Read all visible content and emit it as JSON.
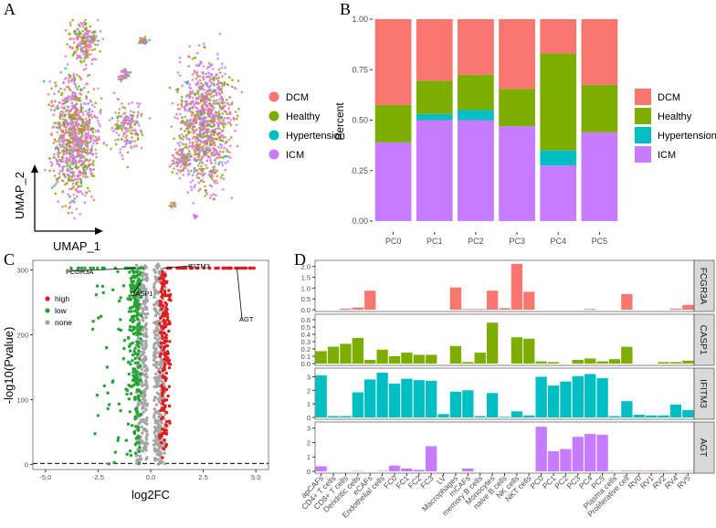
{
  "colors": {
    "DCM": "#F8766D",
    "Healthy": "#7CAE00",
    "Hypertension": "#00BFC4",
    "ICM": "#C77CFF",
    "high": "#E41A1C",
    "low": "#22A532",
    "none": "#A5A5A5"
  },
  "panels": {
    "A": "A",
    "B": "B",
    "C": "C",
    "D": "D"
  },
  "panel_a": {
    "xlabel": "UMAP_1",
    "ylabel": "UMAP_2",
    "legend": [
      "DCM",
      "Healthy",
      "Hypertension",
      "ICM"
    ]
  },
  "chart_data": [
    {
      "id": "B",
      "type": "bar",
      "stacked": true,
      "ylabel": "Percent",
      "categories": [
        "PC0",
        "PC1",
        "PC2",
        "PC3",
        "PC4",
        "PC5"
      ],
      "yticks": [
        "0.00",
        "0.25",
        "0.50",
        "0.75",
        "1.00"
      ],
      "ylim": [
        0,
        1
      ],
      "series": [
        {
          "name": "ICM",
          "values": [
            0.39,
            0.5,
            0.5,
            0.47,
            0.275,
            0.44
          ]
        },
        {
          "name": "Hypertension",
          "values": [
            0.0,
            0.03,
            0.05,
            0.0,
            0.075,
            0.0
          ]
        },
        {
          "name": "Healthy",
          "values": [
            0.185,
            0.165,
            0.175,
            0.185,
            0.48,
            0.235
          ]
        },
        {
          "name": "DCM",
          "values": [
            0.425,
            0.305,
            0.275,
            0.345,
            0.17,
            0.325
          ]
        }
      ],
      "legend": [
        "DCM",
        "Healthy",
        "Hypertension",
        "ICM"
      ]
    },
    {
      "id": "C",
      "type": "scatter",
      "xlabel": "log2FC",
      "ylabel": "-log10(Pvalue)",
      "xticks": [
        "-5.0",
        "-2.5",
        "0.0",
        "2.5",
        "5.0"
      ],
      "yticks": [
        "0",
        "100",
        "200",
        "300"
      ],
      "xlim": [
        -5.6,
        5.6
      ],
      "ylim": [
        -8,
        315
      ],
      "legend": [
        "high",
        "low",
        "none"
      ],
      "labels": [
        "FCGR3A",
        "CASP1",
        "IFITM3",
        "AGT"
      ]
    },
    {
      "id": "D",
      "type": "bar",
      "faceted": true,
      "categories": [
        "apCAFs",
        "CD4+ T cells",
        "CD8+ T cells",
        "Dendritic cells",
        "eCAFs",
        "Endothelial cells",
        "FC0",
        "FC1",
        "FC2",
        "FC3",
        "LV",
        "Macrophages",
        "mCAFs",
        "memory B cells",
        "Monocytes",
        "naive B cells",
        "NK cells",
        "NKT cells",
        "PC0",
        "PC1",
        "PC2",
        "PC3",
        "PC4",
        "PC5",
        "Plasma cells",
        "Proliferative cell",
        "RV0",
        "RV1",
        "RV2",
        "RV4",
        "RV5"
      ],
      "facets": [
        {
          "name": "FCGR3A",
          "ylim": [
            0,
            2.2
          ],
          "yticks": [
            "0.0",
            "0.5",
            "1.0",
            "1.5",
            "2.0"
          ],
          "values": [
            0.0,
            0.0,
            0.05,
            0.1,
            0.88,
            0.0,
            0.0,
            0.0,
            0.0,
            0.0,
            0.0,
            1.03,
            0.03,
            0.03,
            0.88,
            0.07,
            2.12,
            0.83,
            0.0,
            0.0,
            0.0,
            0.0,
            0.03,
            0.0,
            0.0,
            0.72,
            0.0,
            0.0,
            0.0,
            0.05,
            0.22
          ]
        },
        {
          "name": "CASP1",
          "ylim": [
            0,
            0.65
          ],
          "yticks": [
            "0.0",
            "0.1",
            "0.2",
            "0.3",
            "0.4",
            "0.5",
            "0.6"
          ],
          "values": [
            0.17,
            0.23,
            0.27,
            0.35,
            0.05,
            0.19,
            0.1,
            0.15,
            0.12,
            0.12,
            0.0,
            0.24,
            0.02,
            0.15,
            0.56,
            0.0,
            0.36,
            0.34,
            0.03,
            0.02,
            0.0,
            0.05,
            0.07,
            0.03,
            0.06,
            0.23,
            0.0,
            0.0,
            0.02,
            0.02,
            0.04
          ]
        },
        {
          "name": "IFITM3",
          "ylim": [
            0,
            3.5
          ],
          "yticks": [
            "0",
            "1",
            "2",
            "3"
          ],
          "values": [
            3.1,
            0.1,
            0.1,
            1.85,
            2.8,
            3.3,
            2.5,
            2.85,
            2.75,
            2.7,
            0.25,
            1.9,
            2.0,
            0.1,
            1.8,
            0.05,
            0.45,
            0.15,
            3.0,
            2.35,
            2.65,
            3.05,
            3.2,
            2.9,
            0.1,
            1.2,
            0.2,
            0.15,
            0.15,
            0.95,
            0.55
          ]
        },
        {
          "name": "AGT",
          "ylim": [
            0,
            3.3
          ],
          "yticks": [
            "0",
            "1",
            "2",
            "3"
          ],
          "values": [
            0.35,
            0.0,
            0.0,
            0.03,
            0.0,
            0.03,
            0.4,
            0.2,
            0.1,
            1.75,
            0.0,
            0.0,
            0.2,
            0.0,
            0.0,
            0.0,
            0.0,
            0.0,
            3.1,
            1.4,
            1.55,
            2.4,
            2.6,
            2.55,
            0.03,
            0.05,
            0.05,
            0.05,
            0.05,
            0.03,
            0.03
          ]
        }
      ]
    }
  ]
}
